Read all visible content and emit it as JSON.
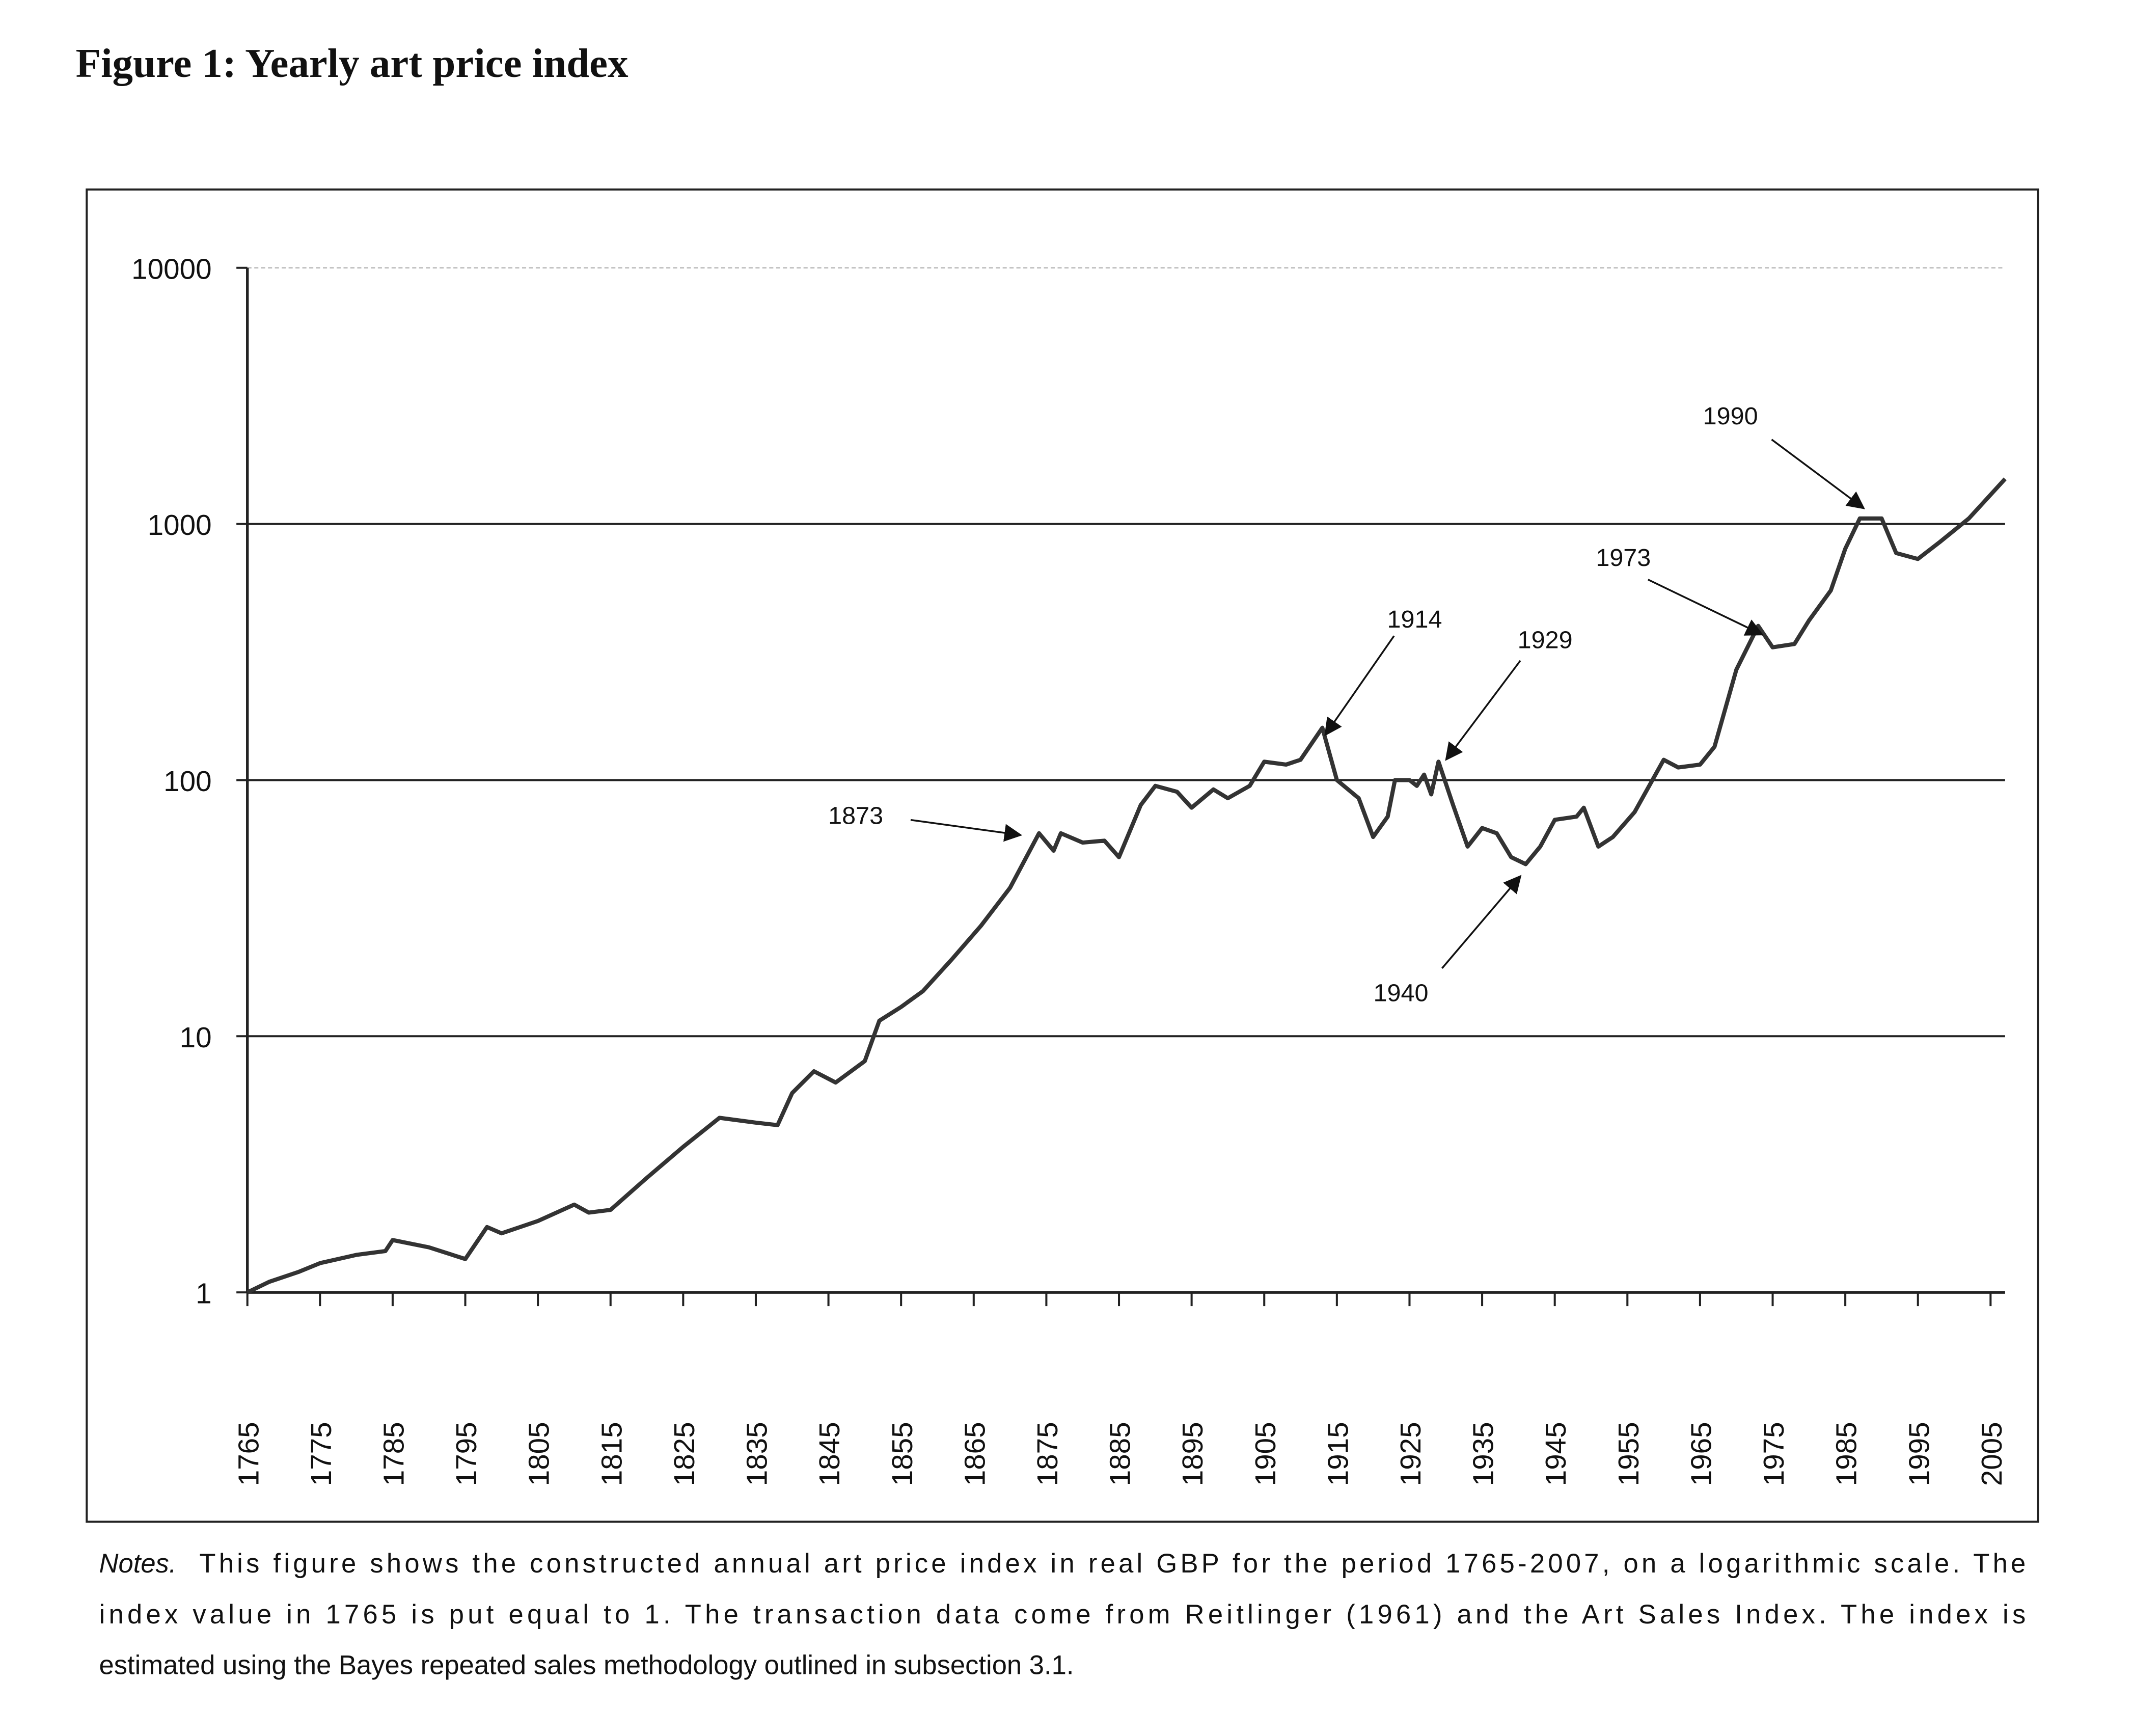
{
  "chart_data": {
    "type": "line",
    "title": "Figure 1: Yearly art price index",
    "x": [
      1765,
      1768,
      1772,
      1775,
      1780,
      1784,
      1785,
      1790,
      1795,
      1798,
      1800,
      1805,
      1810,
      1812,
      1815,
      1820,
      1825,
      1830,
      1835,
      1838,
      1840,
      1843,
      1846,
      1850,
      1852,
      1855,
      1858,
      1862,
      1866,
      1870,
      1874,
      1876,
      1877,
      1880,
      1883,
      1885,
      1888,
      1890,
      1893,
      1895,
      1898,
      1900,
      1903,
      1905,
      1908,
      1910,
      1913,
      1915,
      1918,
      1920,
      1922,
      1923,
      1925,
      1926,
      1927,
      1928,
      1929,
      1931,
      1933,
      1935,
      1937,
      1939,
      1941,
      1943,
      1945,
      1948,
      1949,
      1951,
      1953,
      1956,
      1960,
      1962,
      1965,
      1967,
      1970,
      1973,
      1975,
      1978,
      1980,
      1983,
      1985,
      1987,
      1990,
      1992,
      1995,
      1998,
      2002,
      2007
    ],
    "values": [
      1,
      1.1,
      1.2,
      1.3,
      1.4,
      1.45,
      1.6,
      1.5,
      1.35,
      1.8,
      1.7,
      1.9,
      2.2,
      2.05,
      2.1,
      2.8,
      3.7,
      4.8,
      4.6,
      4.5,
      6,
      7.3,
      6.6,
      8,
      11.5,
      13,
      15,
      20,
      27,
      38,
      62,
      53,
      62,
      57,
      58,
      50,
      80,
      95,
      90,
      78,
      92,
      85,
      95,
      118,
      115,
      120,
      160,
      100,
      85,
      60,
      72,
      100,
      100,
      95,
      105,
      88,
      118,
      80,
      55,
      65,
      62,
      50,
      47,
      55,
      70,
      72,
      78,
      55,
      60,
      75,
      120,
      112,
      115,
      135,
      270,
      400,
      330,
      340,
      420,
      550,
      800,
      1050,
      1050,
      770,
      730,
      850,
      1050,
      1500
    ],
    "color": "#333333",
    "log_scale": true,
    "grid": true,
    "xlim": [
      1765,
      2007
    ],
    "ylim": [
      1,
      10000
    ],
    "yticks": [
      1,
      10,
      100,
      1000,
      10000
    ],
    "xticks": [
      1765,
      1775,
      1785,
      1795,
      1805,
      1815,
      1825,
      1835,
      1845,
      1855,
      1865,
      1875,
      1885,
      1895,
      1905,
      1915,
      1925,
      1935,
      1945,
      1955,
      1965,
      1975,
      1985,
      1995,
      2005
    ],
    "annotations": [
      "1873",
      "1914",
      "1929",
      "1940",
      "1973",
      "1990"
    ],
    "notes_label": "Notes.",
    "notes": [
      "This figure shows the constructed annual art price index in real GBP for the period 1765-2007, on a logarithmic scale. The",
      "index value in 1765 is put equal to 1. The transaction data come from Reitlinger (1961) and the Art Sales Index. The index is",
      "estimated using the Bayes repeated sales methodology outlined in subsection 3.1."
    ]
  }
}
